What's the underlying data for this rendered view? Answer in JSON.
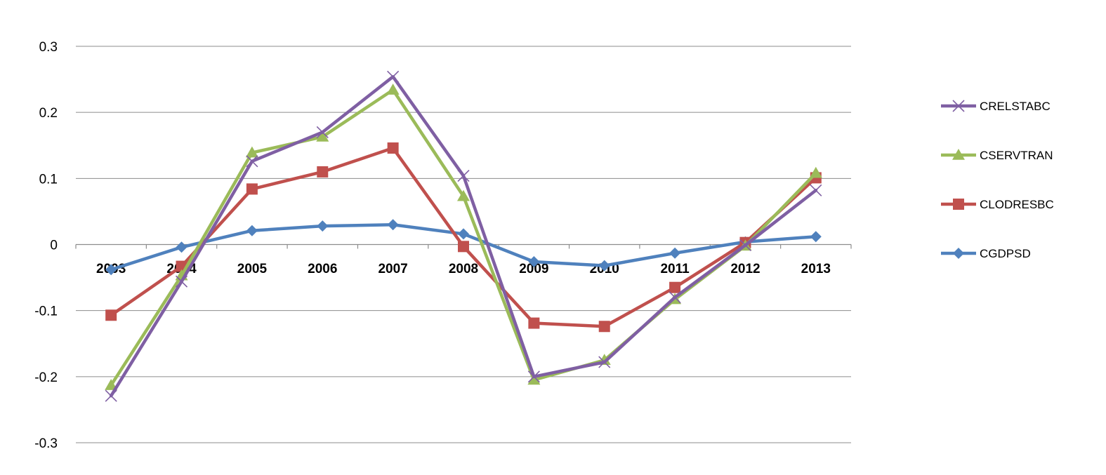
{
  "chart_data": {
    "type": "line",
    "categories": [
      "2003",
      "2004",
      "2005",
      "2006",
      "2007",
      "2008",
      "2009",
      "2010",
      "2011",
      "2012",
      "2013"
    ],
    "y_ticks": [
      "0.3",
      "0.2",
      "0.1",
      "0",
      "-0.1",
      "-0.2",
      "-0.3"
    ],
    "ylim": [
      -0.3,
      0.3
    ],
    "grid": true,
    "legend_position": "right",
    "series": [
      {
        "name": "CRELSTABC",
        "color": "#7F5FA3",
        "marker": "x",
        "values": [
          -0.229,
          -0.056,
          0.126,
          0.17,
          0.254,
          0.104,
          -0.2,
          -0.178,
          -0.08,
          -0.001,
          0.082
        ]
      },
      {
        "name": "CSERVTRAN",
        "color": "#9BBB59",
        "marker": "triangle",
        "values": [
          -0.213,
          -0.047,
          0.139,
          0.163,
          0.234,
          0.073,
          -0.205,
          -0.175,
          -0.083,
          -0.002,
          0.108
        ]
      },
      {
        "name": "CLODRESBC",
        "color": "#C0504D",
        "marker": "square",
        "values": [
          -0.107,
          -0.033,
          0.084,
          0.11,
          0.146,
          -0.003,
          -0.119,
          -0.124,
          -0.065,
          0.003,
          0.101
        ]
      },
      {
        "name": "CGDPSD",
        "color": "#4F81BD",
        "marker": "diamond",
        "values": [
          -0.038,
          -0.004,
          0.021,
          0.028,
          0.03,
          0.016,
          -0.026,
          -0.032,
          -0.013,
          0.004,
          0.012
        ]
      }
    ]
  }
}
